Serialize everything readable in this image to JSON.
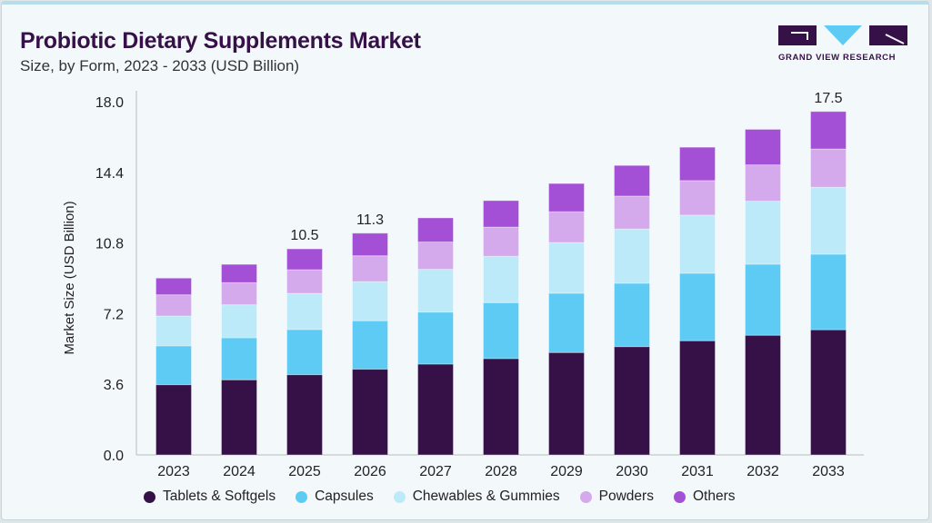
{
  "header": {
    "title": "Probiotic Dietary Supplements Market",
    "subtitle": "Size, by Form, 2023 - 2033 (USD Billion)"
  },
  "logo": {
    "text": "GRAND VIEW RESEARCH",
    "letters": "GVR",
    "colors": [
      "#361148",
      "#5ecbf5"
    ]
  },
  "chart_data": {
    "type": "bar",
    "stacked": true,
    "title": "Probiotic Dietary Supplements Market",
    "subtitle": "Size, by Form, 2023 - 2033 (USD Billion)",
    "xlabel": "",
    "ylabel": "Market Size (USD Billion)",
    "ylim": [
      0,
      18
    ],
    "yticks": [
      "0.0",
      "3.6",
      "7.2",
      "10.8",
      "14.4",
      "18.0"
    ],
    "grid": false,
    "legend_position": "bottom",
    "categories": [
      "2023",
      "2024",
      "2025",
      "2026",
      "2027",
      "2028",
      "2029",
      "2030",
      "2031",
      "2032",
      "2033"
    ],
    "series": [
      {
        "name": "Tablets & Softgels",
        "color": "#361148",
        "values": [
          3.58,
          3.83,
          4.09,
          4.37,
          4.63,
          4.91,
          5.22,
          5.52,
          5.82,
          6.1,
          6.38
        ]
      },
      {
        "name": "Capsules",
        "color": "#5ecbf5",
        "values": [
          1.98,
          2.14,
          2.3,
          2.47,
          2.65,
          2.85,
          3.02,
          3.23,
          3.44,
          3.62,
          3.85
        ]
      },
      {
        "name": "Chewables & Gummies",
        "color": "#bdeaf9",
        "values": [
          1.52,
          1.68,
          1.84,
          1.99,
          2.18,
          2.36,
          2.58,
          2.76,
          2.96,
          3.21,
          3.41
        ]
      },
      {
        "name": "Powders",
        "color": "#d4aaec",
        "values": [
          1.08,
          1.13,
          1.21,
          1.32,
          1.39,
          1.49,
          1.57,
          1.68,
          1.76,
          1.85,
          1.95
        ]
      },
      {
        "name": "Others",
        "color": "#a450d6",
        "values": [
          0.85,
          0.93,
          1.06,
          1.15,
          1.23,
          1.35,
          1.44,
          1.56,
          1.7,
          1.81,
          1.91
        ]
      }
    ],
    "annotations": [
      {
        "category": "2025",
        "text": "10.5"
      },
      {
        "category": "2026",
        "text": "11.3"
      },
      {
        "category": "2033",
        "text": "17.5"
      }
    ]
  }
}
